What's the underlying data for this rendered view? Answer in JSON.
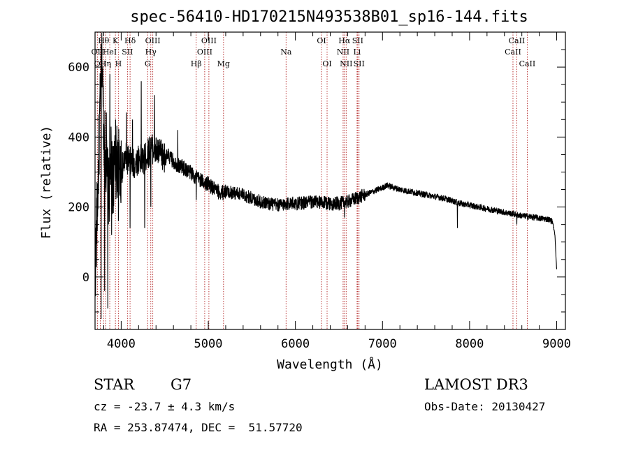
{
  "chart_data": {
    "type": "line",
    "title": "spec-56410-HD170215N493538B01_sp16-144.fits",
    "xlabel": "Wavelength (Å)",
    "ylabel": "Flux (relative)",
    "xlim": [
      3700,
      9100
    ],
    "ylim": [
      -150,
      700
    ],
    "xticks": [
      4000,
      5000,
      6000,
      7000,
      8000,
      9000
    ],
    "yticks": [
      0,
      200,
      400,
      600
    ],
    "spectrum_anchors": [
      [
        3700,
        0
      ],
      [
        3720,
        150
      ],
      [
        3740,
        320
      ],
      [
        3760,
        500
      ],
      [
        3780,
        640
      ],
      [
        3800,
        420
      ],
      [
        3820,
        350
      ],
      [
        3840,
        280
      ],
      [
        3860,
        230
      ],
      [
        3880,
        330
      ],
      [
        3900,
        280
      ],
      [
        3950,
        330
      ],
      [
        4000,
        300
      ],
      [
        4050,
        340
      ],
      [
        4100,
        330
      ],
      [
        4150,
        320
      ],
      [
        4200,
        340
      ],
      [
        4250,
        330
      ],
      [
        4300,
        350
      ],
      [
        4350,
        370
      ],
      [
        4400,
        360
      ],
      [
        4450,
        350
      ],
      [
        4500,
        340
      ],
      [
        4550,
        345
      ],
      [
        4600,
        330
      ],
      [
        4650,
        320
      ],
      [
        4700,
        315
      ],
      [
        4750,
        305
      ],
      [
        4800,
        300
      ],
      [
        4850,
        285
      ],
      [
        4900,
        280
      ],
      [
        4950,
        270
      ],
      [
        5000,
        265
      ],
      [
        5050,
        255
      ],
      [
        5100,
        245
      ],
      [
        5150,
        240
      ],
      [
        5200,
        245
      ],
      [
        5300,
        240
      ],
      [
        5400,
        235
      ],
      [
        5500,
        225
      ],
      [
        5600,
        215
      ],
      [
        5700,
        210
      ],
      [
        5800,
        205
      ],
      [
        5900,
        210
      ],
      [
        6000,
        210
      ],
      [
        6100,
        212
      ],
      [
        6200,
        215
      ],
      [
        6300,
        212
      ],
      [
        6400,
        210
      ],
      [
        6500,
        210
      ],
      [
        6600,
        215
      ],
      [
        6700,
        225
      ],
      [
        6800,
        235
      ],
      [
        6900,
        245
      ],
      [
        7000,
        255
      ],
      [
        7050,
        262
      ],
      [
        7100,
        258
      ],
      [
        7200,
        250
      ],
      [
        7300,
        245
      ],
      [
        7400,
        240
      ],
      [
        7500,
        235
      ],
      [
        7600,
        230
      ],
      [
        7700,
        225
      ],
      [
        7800,
        218
      ],
      [
        7900,
        210
      ],
      [
        8000,
        205
      ],
      [
        8100,
        200
      ],
      [
        8200,
        195
      ],
      [
        8300,
        190
      ],
      [
        8400,
        185
      ],
      [
        8500,
        180
      ],
      [
        8600,
        175
      ],
      [
        8700,
        172
      ],
      [
        8800,
        168
      ],
      [
        8900,
        165
      ],
      [
        8950,
        160
      ],
      [
        8980,
        120
      ],
      [
        9000,
        20
      ]
    ],
    "spikes": [
      [
        3770,
        -120
      ],
      [
        3790,
        560
      ],
      [
        3810,
        -40
      ],
      [
        3830,
        470
      ],
      [
        3845,
        -90
      ],
      [
        3870,
        580
      ],
      [
        3890,
        120
      ],
      [
        3935,
        450
      ],
      [
        3968,
        160
      ],
      [
        4000,
        390
      ],
      [
        4060,
        470
      ],
      [
        4101,
        140
      ],
      [
        4130,
        450
      ],
      [
        4230,
        560
      ],
      [
        4270,
        140
      ],
      [
        4340,
        200
      ],
      [
        4383,
        520
      ],
      [
        4650,
        420
      ],
      [
        4862,
        220
      ],
      [
        6563,
        170
      ],
      [
        7860,
        140
      ],
      [
        8542,
        150
      ]
    ],
    "line_markers": [
      {
        "wavelength": 3727,
        "label": "OII",
        "row": 2
      },
      {
        "wavelength": 3760,
        "label": "OII",
        "row": 3
      },
      {
        "wavelength": 3798,
        "label": "Hθ",
        "row": 1
      },
      {
        "wavelength": 3820,
        "label": "Hη",
        "row": 3
      },
      {
        "wavelength": 3869,
        "label": "HeI",
        "row": 2
      },
      {
        "wavelength": 3934,
        "label": "K",
        "row": 1
      },
      {
        "wavelength": 3968,
        "label": "H",
        "row": 3
      },
      {
        "wavelength": 4072,
        "label": "SII",
        "row": 2
      },
      {
        "wavelength": 4102,
        "label": "Hδ",
        "row": 1
      },
      {
        "wavelength": 4304,
        "label": "G",
        "row": 3
      },
      {
        "wavelength": 4340,
        "label": "Hγ",
        "row": 2
      },
      {
        "wavelength": 4363,
        "label": "OIII",
        "row": 1
      },
      {
        "wavelength": 4861,
        "label": "Hβ",
        "row": 3
      },
      {
        "wavelength": 4959,
        "label": "OIII",
        "row": 2
      },
      {
        "wavelength": 5007,
        "label": "OIII",
        "row": 1
      },
      {
        "wavelength": 5175,
        "label": "Mg",
        "row": 3
      },
      {
        "wavelength": 5893,
        "label": "Na",
        "row": 2
      },
      {
        "wavelength": 6300,
        "label": "OI",
        "row": 1
      },
      {
        "wavelength": 6364,
        "label": "OI",
        "row": 3
      },
      {
        "wavelength": 6548,
        "label": "NII",
        "row": 2
      },
      {
        "wavelength": 6563,
        "label": "Hα",
        "row": 1
      },
      {
        "wavelength": 6583,
        "label": "NII",
        "row": 3
      },
      {
        "wavelength": 6708,
        "label": "Li",
        "row": 2
      },
      {
        "wavelength": 6716,
        "label": "SII",
        "row": 1
      },
      {
        "wavelength": 6731,
        "label": "SII",
        "row": 3
      },
      {
        "wavelength": 8498,
        "label": "CaII",
        "row": 2
      },
      {
        "wavelength": 8542,
        "label": "CaII",
        "row": 1
      },
      {
        "wavelength": 8662,
        "label": "CaII",
        "row": 3
      }
    ]
  },
  "info": {
    "object_type": "STAR",
    "subclass": "G7",
    "redshift": "cz = -23.7 ± 4.3 km/s",
    "coordinates": "RA = 253.87474, DEC =  51.57720",
    "survey": "LAMOST DR3",
    "obs_date": "Obs-Date: 20130427"
  },
  "colors": {
    "spectrum": "#000000",
    "marker_line": "#b22222",
    "axes": "#000000",
    "background": "#ffffff"
  }
}
